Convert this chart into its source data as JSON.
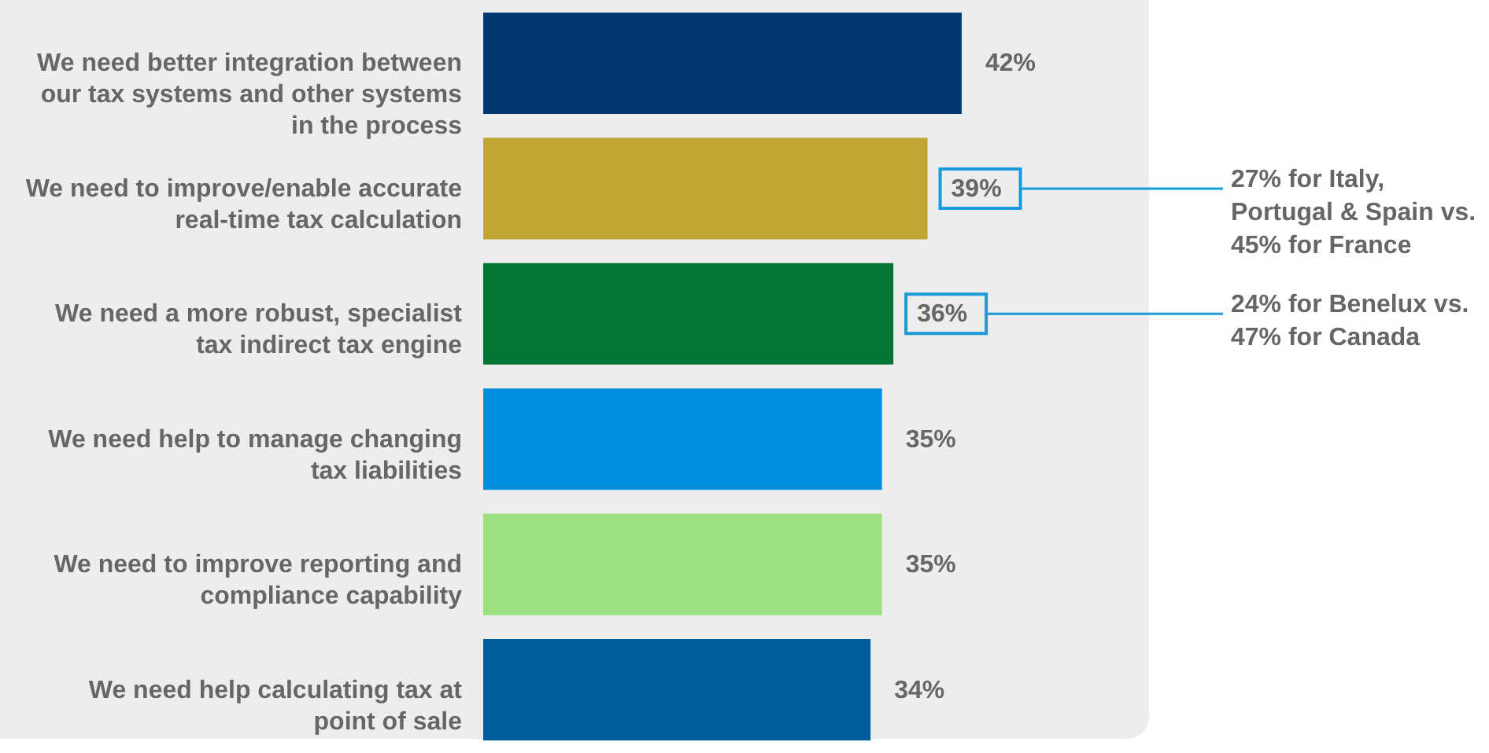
{
  "chart_data": {
    "type": "bar",
    "orientation": "horizontal",
    "value_labels": [
      "42%",
      "39%",
      "36%",
      "35%",
      "35%",
      "34%"
    ],
    "categories": [
      "We need better integration between our tax systems and other systems in the process",
      "We need to improve/enable accurate real-time tax calculation",
      "We need a more robust, specialist tax indirect tax engine",
      "We need help to manage changing tax liabilities",
      "We need to improve reporting and compliance capability",
      "We need help calculating tax at point of sale"
    ],
    "values": [
      42,
      39,
      36,
      35,
      35,
      34
    ],
    "colors": [
      "#00376e",
      "#c2a633",
      "#007632",
      "#008fdc",
      "#9ce083",
      "#005d9b"
    ],
    "annotations": [
      "27% for Italy, Portugal & Spain vs. 45% for France",
      "24% for Benelux vs. 47% for Canada"
    ]
  }
}
